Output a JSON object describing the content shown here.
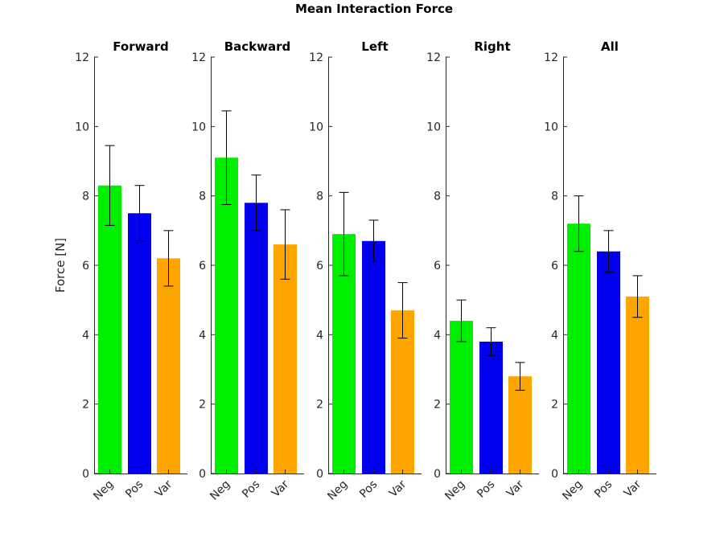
{
  "chart_data": {
    "type": "bar",
    "title": "Mean Interaction Force",
    "ylabel": "Force [N]",
    "ylim": [
      0,
      12
    ],
    "yticks": [
      "0",
      "2",
      "4",
      "6",
      "8",
      "10",
      "12"
    ],
    "categories": [
      "Neg",
      "Pos",
      "Var"
    ],
    "colors": [
      "#00ee00",
      "#0000ee",
      "#ffa500"
    ],
    "error_bars": true,
    "panels": [
      {
        "title": "Forward",
        "values": [
          8.3,
          7.5,
          6.2
        ],
        "err_low": [
          7.15,
          6.7,
          5.4
        ],
        "err_high": [
          9.45,
          8.3,
          7.0
        ]
      },
      {
        "title": "Backward",
        "values": [
          9.1,
          7.8,
          6.6
        ],
        "err_low": [
          7.75,
          7.0,
          5.6
        ],
        "err_high": [
          10.45,
          8.6,
          7.6
        ]
      },
      {
        "title": "Left",
        "values": [
          6.9,
          6.7,
          4.7
        ],
        "err_low": [
          5.7,
          6.1,
          3.9
        ],
        "err_high": [
          8.1,
          7.3,
          5.5
        ]
      },
      {
        "title": "Right",
        "values": [
          4.4,
          3.8,
          2.8
        ],
        "err_low": [
          3.8,
          3.4,
          2.4
        ],
        "err_high": [
          5.0,
          4.2,
          3.2
        ]
      },
      {
        "title": "All",
        "values": [
          7.2,
          6.4,
          5.1
        ],
        "err_low": [
          6.4,
          5.8,
          4.5
        ],
        "err_high": [
          8.0,
          7.0,
          5.7
        ]
      }
    ]
  }
}
